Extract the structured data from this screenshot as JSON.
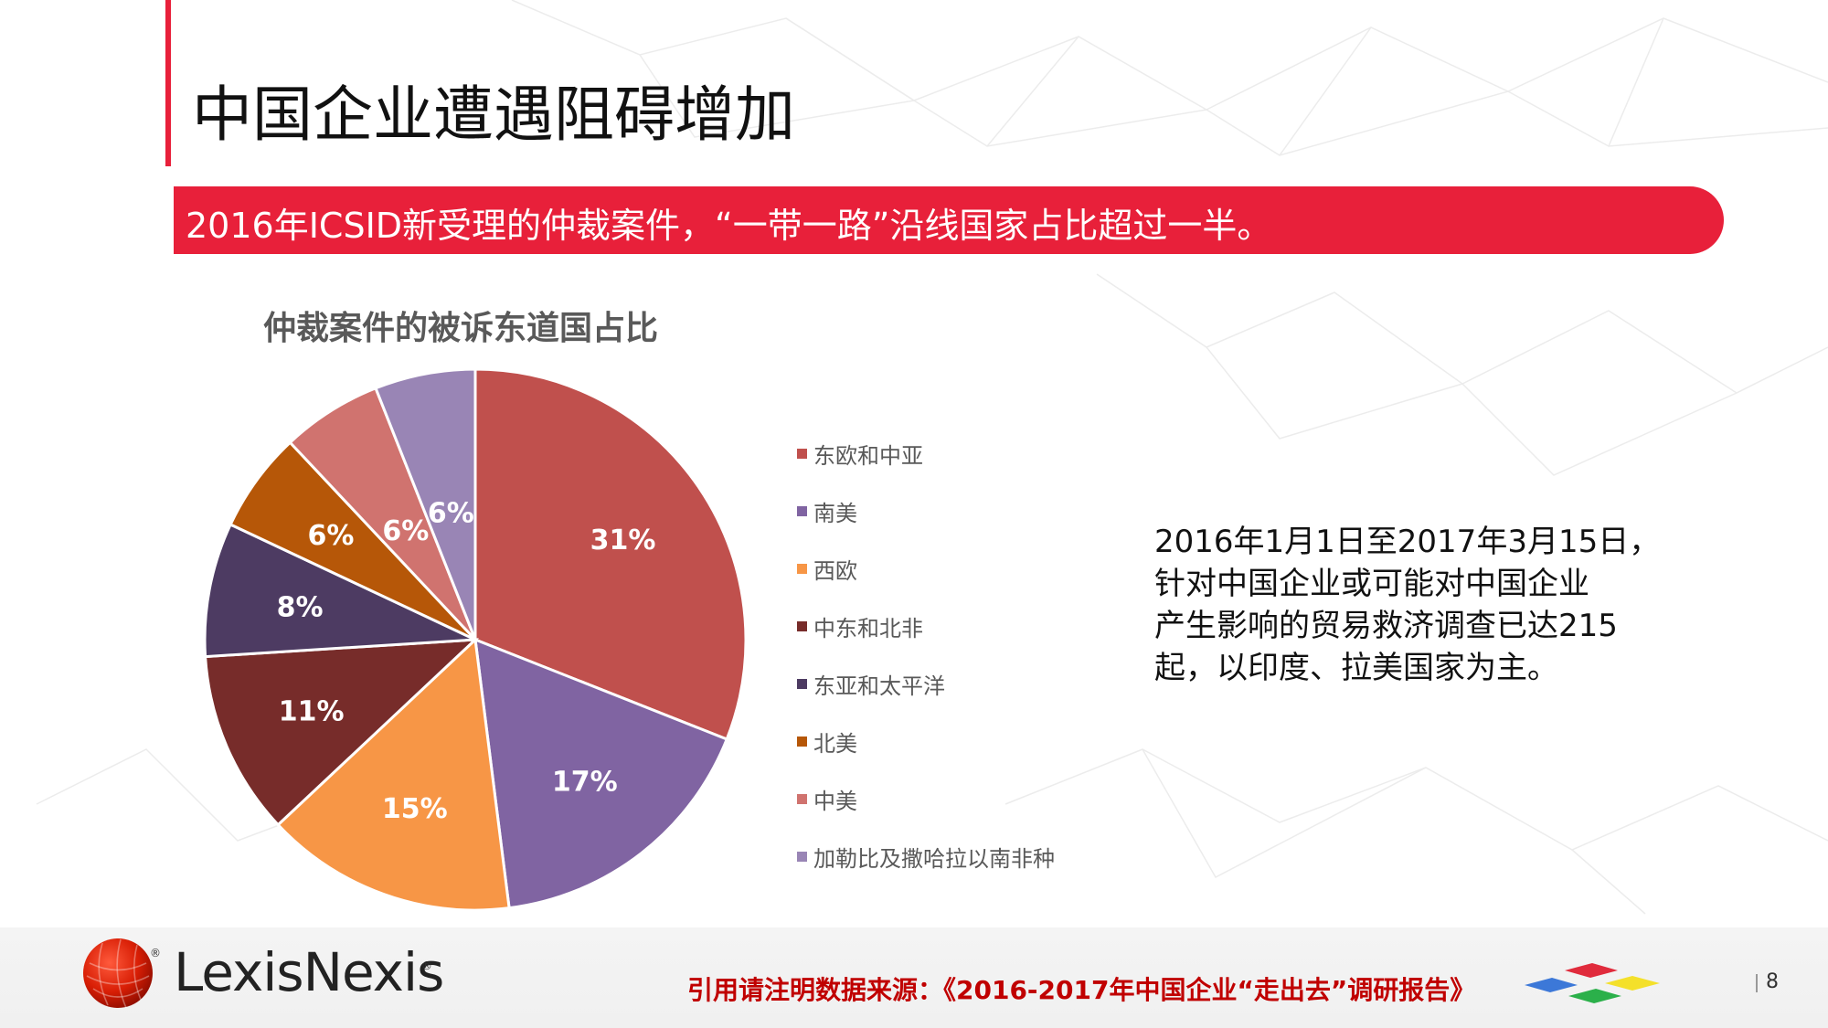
{
  "slide": {
    "title": "中国企业遭遇阻碍增加",
    "banner_text": "2016年ICSID新受理的仲裁案件，“一带一路”沿线国家占比超过一半。",
    "note_lines": [
      "2016年1月1日至2017年3月15日，",
      "针对中国企业或可能对中国企业",
      "产生影响的贸易救济调查已达215",
      "起，以印度、拉美国家为主。"
    ],
    "source": "引用请注明数据来源：《2016-2017年中国企业“走出去”调研报告》",
    "page_number": "8",
    "logo": {
      "brand": "LexisNexis",
      "mark": "®"
    },
    "colors": {
      "accent": "#e8203a",
      "footer_text": "#c00000"
    }
  },
  "chart_data": {
    "type": "pie",
    "title": "仲裁案件的被诉东道国占比",
    "categories": [
      "东欧和中亚",
      "南美",
      "西欧",
      "中东和北非",
      "东亚和太平洋",
      "北美",
      "中美",
      "加勒比及撒哈拉以南非种"
    ],
    "values": [
      31,
      17,
      15,
      11,
      8,
      6,
      6,
      6
    ],
    "value_labels": [
      "31%",
      "17%",
      "15%",
      "11%",
      "8%",
      "6%",
      "6%",
      "6%"
    ],
    "colors": [
      "#c0504d",
      "#8064a2",
      "#f79646",
      "#772c2a",
      "#4d3b62",
      "#b65708",
      "#d0736f",
      "#9985b5"
    ],
    "legend_position": "right"
  }
}
